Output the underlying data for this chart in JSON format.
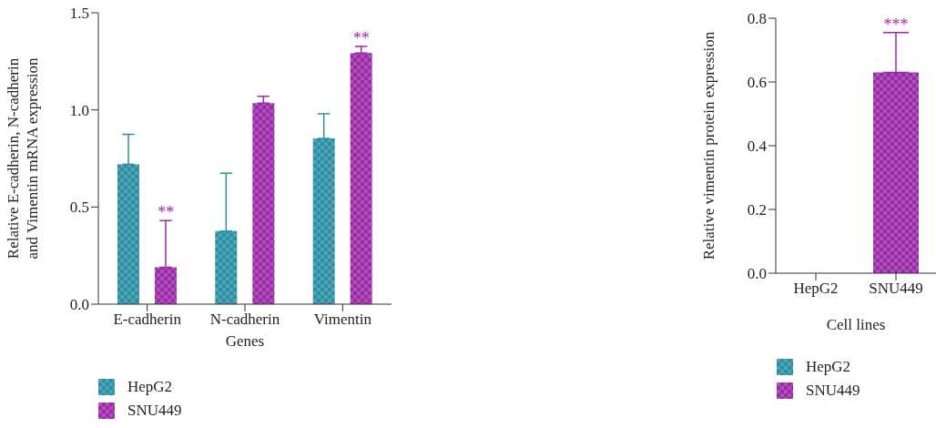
{
  "chart_data": [
    {
      "type": "bar",
      "categories": [
        "E-cadherin",
        "N-cadherin",
        "Vimentin"
      ],
      "xlabel": "Genes",
      "ylabel": "Relative E-cadherin, N-cadherin\nand Vimentin mRNA expression",
      "ylim": [
        0,
        1.5
      ],
      "yticks": [
        {
          "value": 0,
          "label": "0.0"
        },
        {
          "value": 0.5,
          "label": "0.5"
        },
        {
          "value": 1,
          "label": "1.0"
        },
        {
          "value": 1.5,
          "label": "1.5"
        }
      ],
      "legend": "bottom",
      "series": [
        {
          "name": "HepG2",
          "color": "#2a8fa3",
          "values": [
            0.72,
            0.376,
            0.853
          ],
          "errors": [
            [
              0.72,
              0.874
            ],
            [
              0.376,
              0.674
            ],
            [
              0.853,
              0.98
            ]
          ]
        },
        {
          "name": "SNU449",
          "color": "#9b2aa8",
          "values": [
            0.19,
            1.035,
            1.293
          ],
          "errors": [
            [
              0.19,
              0.43
            ],
            [
              1.035,
              1.07
            ],
            [
              1.293,
              1.327
            ]
          ],
          "value_labels": [
            "**",
            null,
            "**"
          ]
        }
      ]
    },
    {
      "type": "bar",
      "stacked": true,
      "categories": [
        "HepG2",
        "SNU449"
      ],
      "xlabel": "Cell lines",
      "ylabel": "Relative vimentin protein expression",
      "ylim": [
        0,
        0.8
      ],
      "yticks": [
        {
          "value": 0,
          "label": "0.0"
        },
        {
          "value": 0.2,
          "label": "0.2"
        },
        {
          "value": 0.4,
          "label": "0.4"
        },
        {
          "value": 0.6,
          "label": "0.6"
        },
        {
          "value": 0.8,
          "label": "0.8"
        }
      ],
      "legend": "bottom",
      "series": [
        {
          "name": "HepG2",
          "color": "#2a8fa3",
          "values": [
            0,
            null
          ]
        },
        {
          "name": "SNU449",
          "color": "#9b2aa8",
          "values": [
            null,
            0.63
          ],
          "errors": [
            null,
            [
              0.63,
              0.755
            ]
          ],
          "value_labels": [
            null,
            "***"
          ]
        }
      ]
    }
  ]
}
